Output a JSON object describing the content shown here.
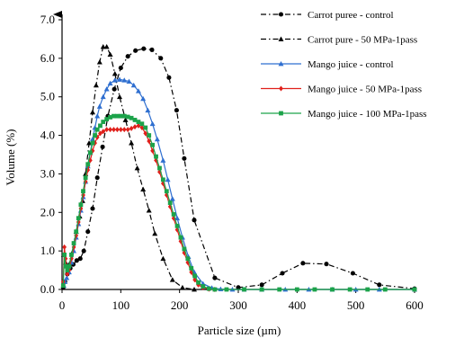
{
  "chart_data": {
    "type": "line",
    "title": "",
    "xlabel": "Particle size (µm)",
    "ylabel": "Volume (%)",
    "xlim": [
      0,
      600
    ],
    "ylim": [
      0,
      7.0
    ],
    "x_ticks": [
      "0",
      "100",
      "200",
      "300",
      "400",
      "500",
      "600"
    ],
    "y_ticks": [
      "0.0",
      "1.0",
      "2.0",
      "3.0",
      "4.0",
      "5.0",
      "6.0",
      "7.0"
    ],
    "grid": false,
    "legend_position": "top-right",
    "series": [
      {
        "name": "Carrot puree - control",
        "color": "#000000",
        "line_style": "dash-dot",
        "marker": "circle",
        "x": [
          2,
          5,
          9,
          14,
          19,
          25,
          31,
          37,
          44,
          52,
          60,
          69,
          78,
          89,
          100,
          112,
          125,
          139,
          153,
          168,
          182,
          195,
          208,
          225,
          260,
          300,
          340,
          375,
          410,
          450,
          495,
          540,
          600
        ],
        "y": [
          0.05,
          0.2,
          0.4,
          0.55,
          0.65,
          0.75,
          0.8,
          1.0,
          1.5,
          2.1,
          2.9,
          3.7,
          4.5,
          5.2,
          5.75,
          6.05,
          6.2,
          6.25,
          6.22,
          6.0,
          5.5,
          4.65,
          3.4,
          1.8,
          0.3,
          0.05,
          0.12,
          0.42,
          0.68,
          0.66,
          0.42,
          0.12,
          0.02
        ]
      },
      {
        "name": "Carrot pure - 50 MPa-1pass",
        "color": "#000000",
        "line_style": "dash-dot",
        "marker": "triangle",
        "x": [
          3,
          6,
          10,
          14,
          19,
          24,
          30,
          35,
          40,
          46,
          52,
          58,
          64,
          70,
          76,
          82,
          90,
          98,
          108,
          118,
          128,
          138,
          148,
          158,
          172,
          188,
          205,
          225
        ],
        "y": [
          0.9,
          0.7,
          0.6,
          0.7,
          1.0,
          1.5,
          1.9,
          2.3,
          3.0,
          3.8,
          4.6,
          5.3,
          5.9,
          6.3,
          6.3,
          6.1,
          5.6,
          5.0,
          4.4,
          3.8,
          3.15,
          2.6,
          2.05,
          1.45,
          0.8,
          0.25,
          0.05,
          0.0
        ]
      },
      {
        "name": "Mango juice - control",
        "color": "#2f6fd0",
        "line_style": "solid",
        "marker": "triangle",
        "x": [
          3,
          5,
          8,
          12,
          16,
          20,
          24,
          28,
          32,
          36,
          40,
          44,
          48,
          52,
          56,
          60,
          64,
          70,
          76,
          82,
          90,
          98,
          106,
          114,
          122,
          130,
          138,
          146,
          154,
          162,
          172,
          180,
          188,
          196,
          205,
          215,
          225,
          240,
          255,
          270,
          290,
          310,
          340,
          380,
          420,
          460,
          500,
          540,
          600
        ],
        "y": [
          0.1,
          0.2,
          0.3,
          0.45,
          0.7,
          1.0,
          1.35,
          1.7,
          2.05,
          2.4,
          2.8,
          3.2,
          3.55,
          3.9,
          4.2,
          4.5,
          4.75,
          5.0,
          5.2,
          5.35,
          5.43,
          5.45,
          5.43,
          5.4,
          5.3,
          5.15,
          4.95,
          4.65,
          4.3,
          3.9,
          3.35,
          2.85,
          2.35,
          1.85,
          1.35,
          0.85,
          0.45,
          0.15,
          0.04,
          0.01,
          0.0,
          0.0,
          0.0,
          0.0,
          0.0,
          0.0,
          0.0,
          0.0,
          0.0
        ]
      },
      {
        "name": "Mango juice - 50 MPa-1pass",
        "color": "#e0201b",
        "line_style": "solid",
        "marker": "diamond",
        "x": [
          2,
          4,
          6,
          9,
          12,
          16,
          20,
          24,
          28,
          32,
          36,
          40,
          44,
          48,
          52,
          56,
          60,
          65,
          70,
          76,
          82,
          88,
          94,
          100,
          106,
          112,
          118,
          124,
          130,
          136,
          142,
          148,
          154,
          160,
          166,
          172,
          178,
          184,
          190,
          196,
          202,
          208,
          214,
          220,
          226,
          232,
          240,
          250,
          260
        ],
        "y": [
          0.2,
          1.1,
          0.8,
          0.4,
          0.5,
          0.8,
          1.1,
          1.4,
          1.75,
          2.1,
          2.45,
          2.8,
          3.1,
          3.35,
          3.6,
          3.8,
          3.95,
          4.05,
          4.1,
          4.15,
          4.15,
          4.15,
          4.15,
          4.15,
          4.15,
          4.15,
          4.18,
          4.22,
          4.25,
          4.2,
          4.05,
          3.85,
          3.6,
          3.35,
          3.05,
          2.75,
          2.45,
          2.15,
          1.85,
          1.55,
          1.25,
          0.95,
          0.7,
          0.45,
          0.25,
          0.12,
          0.05,
          0.01,
          0.0
        ]
      },
      {
        "name": "Mango juice - 100 MPa-1pass",
        "color": "#1ca34a",
        "line_style": "solid",
        "marker": "square",
        "x": [
          2,
          4,
          6,
          9,
          12,
          16,
          20,
          24,
          28,
          32,
          36,
          40,
          44,
          48,
          52,
          56,
          60,
          65,
          70,
          76,
          82,
          88,
          94,
          100,
          106,
          112,
          118,
          124,
          130,
          136,
          142,
          148,
          154,
          160,
          166,
          172,
          178,
          184,
          190,
          196,
          202,
          208,
          214,
          220,
          226,
          232,
          240,
          250,
          260,
          280,
          310,
          340,
          370,
          400,
          430,
          460,
          490,
          520,
          550,
          600
        ],
        "y": [
          0.1,
          0.9,
          0.6,
          0.5,
          0.6,
          0.9,
          1.2,
          1.5,
          1.85,
          2.2,
          2.55,
          2.9,
          3.25,
          3.55,
          3.8,
          4.0,
          4.15,
          4.25,
          4.35,
          4.42,
          4.47,
          4.5,
          4.5,
          4.5,
          4.5,
          4.48,
          4.45,
          4.4,
          4.35,
          4.3,
          4.2,
          4.0,
          3.75,
          3.45,
          3.15,
          2.85,
          2.55,
          2.25,
          1.95,
          1.65,
          1.35,
          1.05,
          0.8,
          0.55,
          0.35,
          0.18,
          0.08,
          0.02,
          0.0,
          0.0,
          0.0,
          0.0,
          0.0,
          0.0,
          0.0,
          0.0,
          0.0,
          0.0,
          0.0,
          0.0
        ]
      }
    ]
  }
}
